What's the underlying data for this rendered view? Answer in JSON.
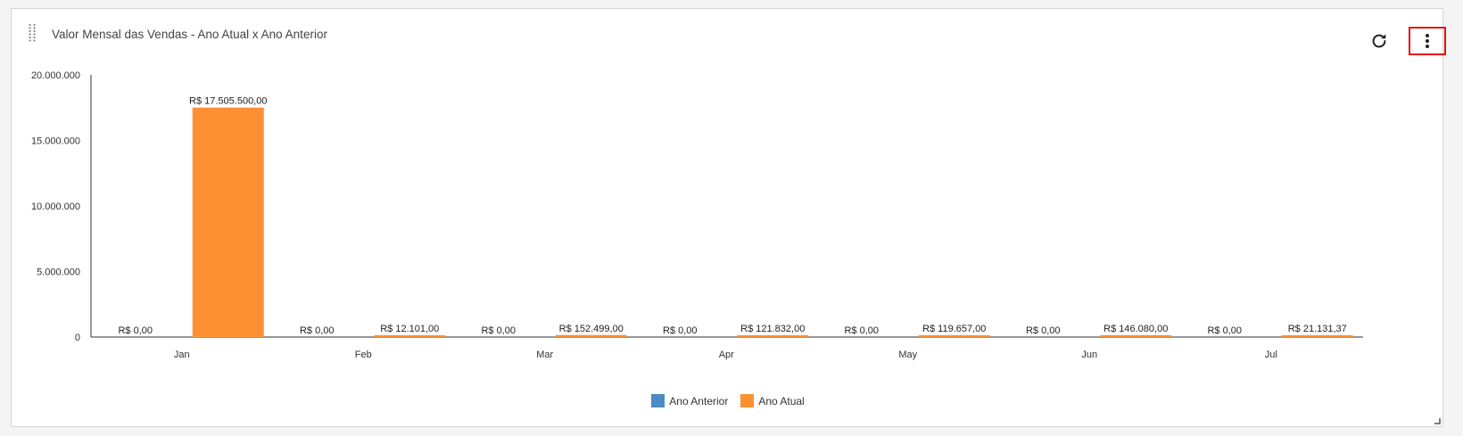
{
  "widget": {
    "title": "Valor Mensal das Vendas - Ano Atual x Ano Anterior",
    "refresh_icon": "refresh-icon",
    "menu_icon": "more-vertical-icon",
    "drag_icon": "drag-handle-icon"
  },
  "colors": {
    "ano_anterior": "#4a8bc2",
    "ano_atual": "#fc9033",
    "axis": "#333333",
    "menu_highlight": "#e01010"
  },
  "chart_data": {
    "type": "bar",
    "categories": [
      "Jan",
      "Feb",
      "Mar",
      "Apr",
      "May",
      "Jun",
      "Jul"
    ],
    "series": [
      {
        "name": "Ano Anterior",
        "values": [
          0,
          0,
          0,
          0,
          0,
          0,
          0
        ],
        "labels": [
          "R$ 0,00",
          "R$ 0,00",
          "R$ 0,00",
          "R$ 0,00",
          "R$ 0,00",
          "R$ 0,00",
          "R$ 0,00"
        ]
      },
      {
        "name": "Ano Atual",
        "values": [
          17505500,
          12101,
          152499,
          121832,
          119657,
          146080,
          21131.37
        ],
        "labels": [
          "R$ 17.505.500,00",
          "R$ 12.101,00",
          "R$ 152.499,00",
          "R$ 121.832,00",
          "R$ 119.657,00",
          "R$ 146.080,00",
          "R$ 21.131,37"
        ]
      }
    ],
    "yticks": [
      0,
      5000000,
      10000000,
      15000000,
      20000000
    ],
    "ytick_labels": [
      "0",
      "5.000.000",
      "10.000.000",
      "15.000.000",
      "20.000.000"
    ],
    "ylim": [
      0,
      20000000
    ],
    "legend_position": "bottom-center",
    "grid": false
  }
}
